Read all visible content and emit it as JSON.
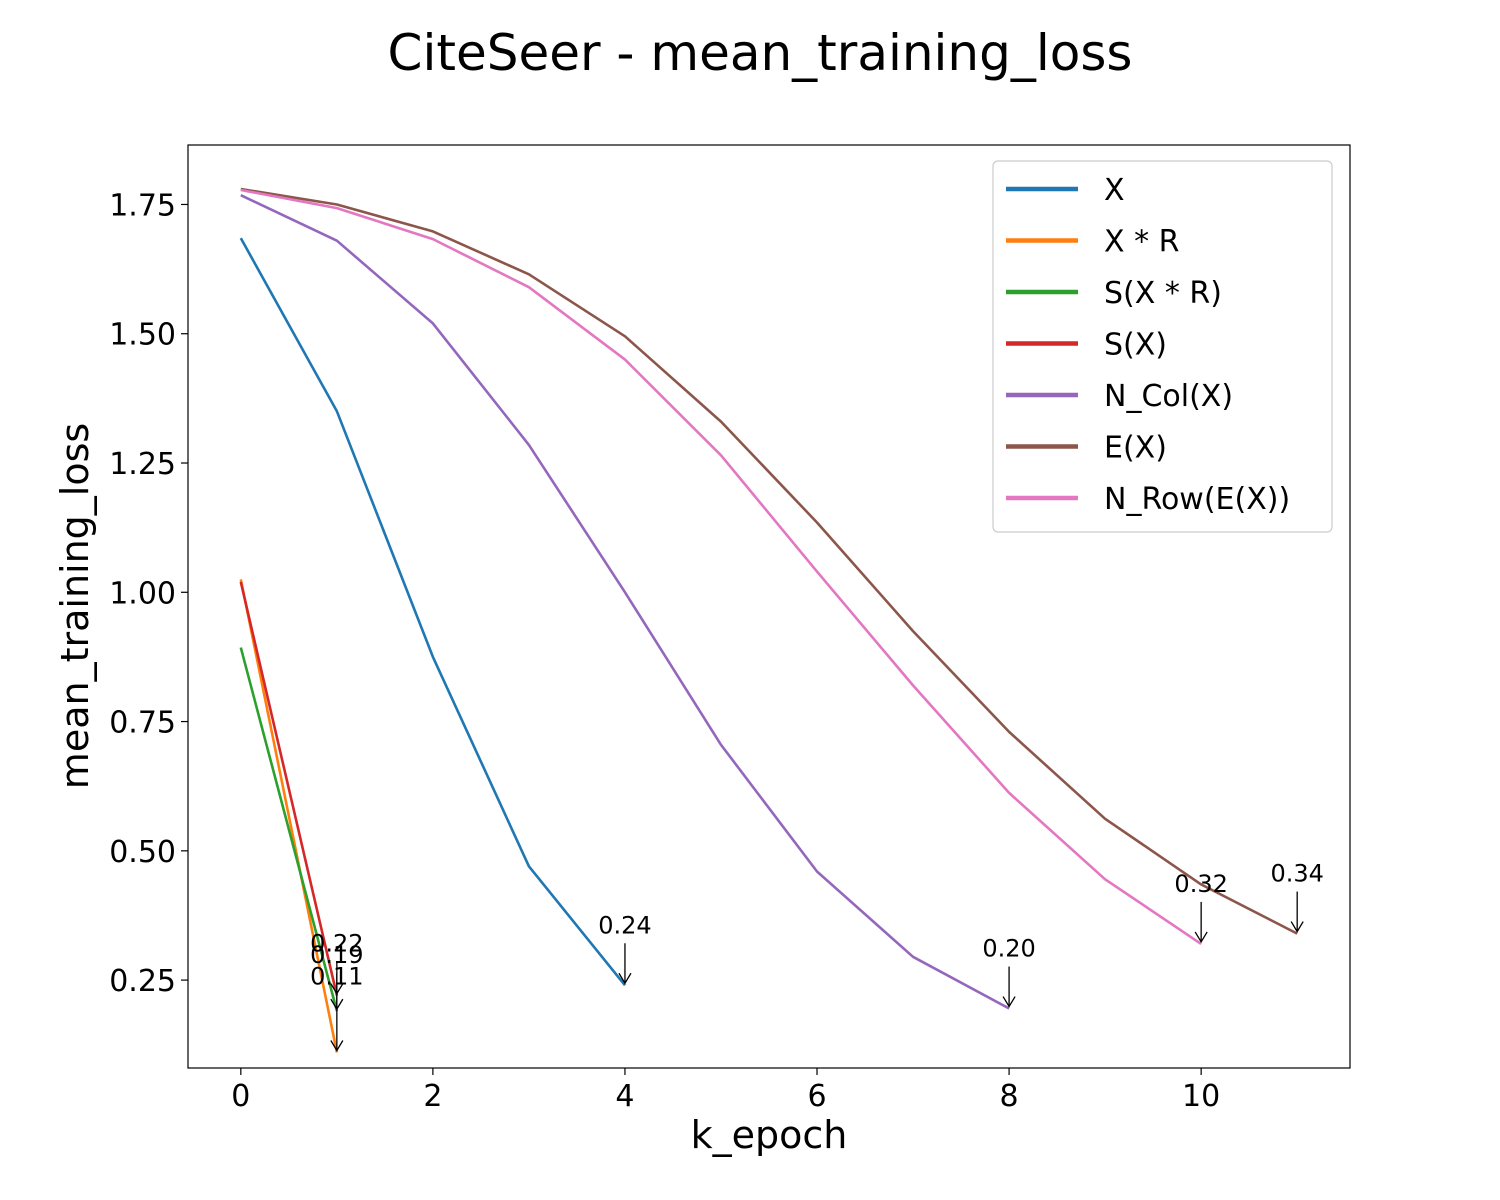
{
  "chart_data": {
    "type": "line",
    "title": "CiteSeer - mean_training_loss",
    "xlabel": "k_epoch",
    "ylabel": "mean_training_loss",
    "xlim": [
      -0.55,
      11.55
    ],
    "ylim": [
      0.08,
      1.865
    ],
    "xticks": [
      0,
      2,
      4,
      6,
      8,
      10
    ],
    "xtick_labels": [
      "0",
      "2",
      "4",
      "6",
      "8",
      "10"
    ],
    "yticks": [
      0.25,
      0.5,
      0.75,
      1.0,
      1.25,
      1.5,
      1.75
    ],
    "ytick_labels": [
      "0.25",
      "0.50",
      "0.75",
      "1.00",
      "1.25",
      "1.50",
      "1.75"
    ],
    "grid": false,
    "legend_position": "top-right",
    "series": [
      {
        "name": "X",
        "color": "#1f77b4",
        "x": [
          0,
          1,
          2,
          3,
          4
        ],
        "y": [
          1.685,
          1.35,
          0.875,
          0.47,
          0.24
        ]
      },
      {
        "name": "X * R",
        "color": "#ff7f0e",
        "x": [
          0,
          1
        ],
        "y": [
          1.025,
          0.11
        ]
      },
      {
        "name": "S(X * R)",
        "color": "#2ca02c",
        "x": [
          0,
          1
        ],
        "y": [
          0.893,
          0.19
        ]
      },
      {
        "name": "S(X)",
        "color": "#d62728",
        "x": [
          0,
          1
        ],
        "y": [
          1.02,
          0.22
        ]
      },
      {
        "name": "N_Col(X)",
        "color": "#9467bd",
        "x": [
          0,
          1,
          2,
          3,
          4,
          5,
          6,
          7,
          8
        ],
        "y": [
          1.768,
          1.68,
          1.52,
          1.285,
          1.0,
          0.705,
          0.46,
          0.295,
          0.195
        ]
      },
      {
        "name": "E(X)",
        "color": "#8c564b",
        "x": [
          0,
          1,
          2,
          3,
          4,
          5,
          6,
          7,
          8,
          9,
          10,
          11
        ],
        "y": [
          1.78,
          1.75,
          1.698,
          1.615,
          1.495,
          1.33,
          1.135,
          0.925,
          0.73,
          0.562,
          0.435,
          0.34
        ]
      },
      {
        "name": "N_Row(E(X))",
        "color": "#e377c2",
        "x": [
          0,
          1,
          2,
          3,
          4,
          5,
          6,
          7,
          8,
          9,
          10
        ],
        "y": [
          1.778,
          1.743,
          1.683,
          1.59,
          1.45,
          1.265,
          1.04,
          0.82,
          0.612,
          0.445,
          0.32
        ]
      }
    ],
    "annotations": [
      {
        "text": "0.22",
        "x": 1,
        "y": 0.22
      },
      {
        "text": "0.19",
        "x": 1,
        "y": 0.19
      },
      {
        "text": "0.11",
        "x": 1,
        "y": 0.11
      },
      {
        "text": "0.24",
        "x": 4,
        "y": 0.24
      },
      {
        "text": "0.20",
        "x": 8,
        "y": 0.195
      },
      {
        "text": "0.32",
        "x": 10,
        "y": 0.32
      },
      {
        "text": "0.34",
        "x": 11,
        "y": 0.34
      }
    ]
  }
}
